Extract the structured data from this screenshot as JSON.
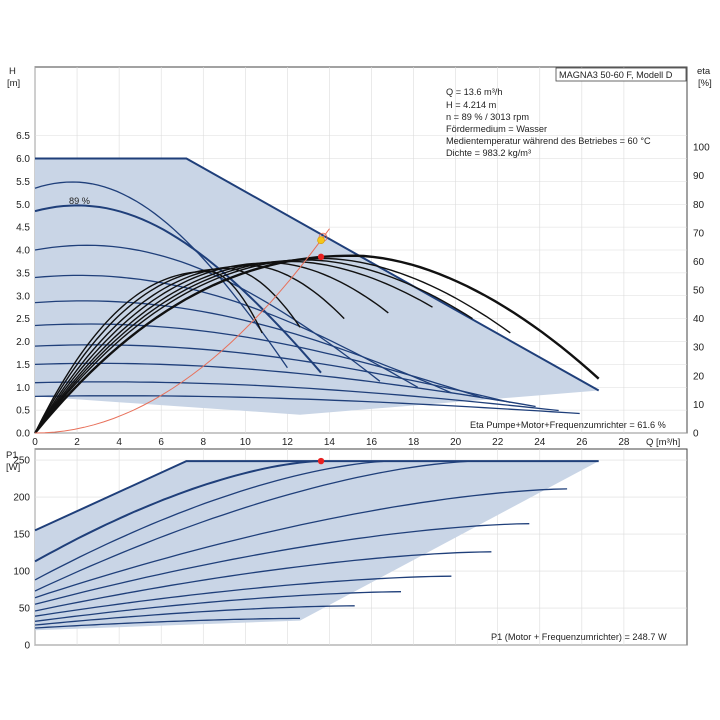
{
  "chart_data": [
    {
      "type": "line",
      "panel": "top",
      "model_label": "MAGNA3 50-60 F, Modell D",
      "ylabel": "H",
      "yunit": "[m]",
      "y2label": "eta",
      "y2unit": "[%]",
      "xlabel": "Q [m³/h]",
      "xticks": [
        "0",
        "2",
        "4",
        "6",
        "8",
        "10",
        "12",
        "14",
        "16",
        "18",
        "20",
        "22",
        "24",
        "26",
        "28"
      ],
      "yticks": [
        "0.0",
        "0.5",
        "1.0",
        "1.5",
        "2.0",
        "2.5",
        "3.0",
        "3.5",
        "4.0",
        "4.5",
        "5.0",
        "5.5",
        "6.0",
        "6.5"
      ],
      "y2ticks": [
        "0",
        "10",
        "20",
        "30",
        "40",
        "50",
        "60",
        "70",
        "80",
        "90",
        "100"
      ],
      "xlim": [
        0,
        31
      ],
      "ylim": [
        0,
        8
      ],
      "y2lim": [
        0,
        128
      ],
      "info_lines": [
        "Q = 13.6 m³/h",
        "H = 4.214 m",
        "n = 89 % / 3013 rpm",
        "Fördermedium = Wasser",
        "Medientemperatur während des Betriebes = 60 °C",
        "Dichte = 983.2 kg/m³"
      ],
      "speed_label": "89 %",
      "eta_note": "Eta Pumpe+Motor+Frequenzumrichter = 61.6 %",
      "envelope": [
        [
          0,
          6.0
        ],
        [
          7.2,
          6.0
        ],
        [
          26.8,
          0.93
        ],
        [
          12.6,
          0.4
        ],
        [
          0,
          0.8
        ]
      ],
      "h_curves": [
        {
          "h0": 5.35,
          "q_end": 12.0
        },
        {
          "h0": 4.85,
          "q_end": 13.6
        },
        {
          "h0": 4.0,
          "q_end": 16.4
        },
        {
          "h0": 3.4,
          "q_end": 18.2
        },
        {
          "h0": 2.85,
          "q_end": 19.8
        },
        {
          "h0": 2.35,
          "q_end": 21.3
        },
        {
          "h0": 1.9,
          "q_end": 22.6
        },
        {
          "h0": 1.5,
          "q_end": 23.8
        },
        {
          "h0": 1.1,
          "q_end": 24.9
        },
        {
          "h0": 0.8,
          "q_end": 25.9
        }
      ],
      "eta_curves": [
        {
          "q_end": 26.8,
          "peak_q": 15.2,
          "peak": 62.0,
          "end": 19
        },
        {
          "q_end": 22.6,
          "peak_q": 13.8,
          "peak": 61.0,
          "end": 35
        },
        {
          "q_end": 20.8,
          "peak_q": 13.0,
          "peak": 60.5,
          "end": 40
        },
        {
          "q_end": 18.9,
          "peak_q": 12.2,
          "peak": 60.0,
          "end": 44
        },
        {
          "q_end": 16.8,
          "peak_q": 11.3,
          "peak": 59.5,
          "end": 42
        },
        {
          "q_end": 14.7,
          "peak_q": 10.3,
          "peak": 58.5,
          "end": 40
        },
        {
          "q_end": 12.6,
          "peak_q": 9.2,
          "peak": 57.5,
          "end": 37
        },
        {
          "q_end": 10.8,
          "peak_q": 8.3,
          "peak": 56.5,
          "end": 35
        }
      ],
      "system_curve": {
        "k": 0.02278,
        "q_max": 14.0
      },
      "duty_point": {
        "q": 13.6,
        "h": 4.214
      },
      "eta_point": {
        "q": 13.6,
        "eta": 61.6
      }
    },
    {
      "type": "line",
      "panel": "bottom",
      "ylabel": "P1",
      "yunit": "[W]",
      "xlim": [
        0,
        31
      ],
      "ylim": [
        0,
        265
      ],
      "yticks": [
        "0",
        "50",
        "100",
        "150",
        "200",
        "250"
      ],
      "p_note": "P1 (Motor + Frequenzumrichter) = 248.7 W",
      "envelope": [
        [
          0,
          155
        ],
        [
          7.2,
          248.7
        ],
        [
          26.8,
          248.7
        ],
        [
          12.6,
          33
        ],
        [
          0,
          20
        ]
      ],
      "p_curves": [
        {
          "p0": 113,
          "q_end": 13.6,
          "p_end": 248.7
        },
        {
          "p0": 88,
          "q_end": 17.0,
          "p_end": 248.7
        },
        {
          "p0": 73,
          "q_end": 21.1,
          "p_end": 248.7
        },
        {
          "p0": 64,
          "q_end": 25.3,
          "p_end": 211
        },
        {
          "p0": 55,
          "q_end": 23.5,
          "p_end": 164
        },
        {
          "p0": 46,
          "q_end": 21.7,
          "p_end": 126
        },
        {
          "p0": 39,
          "q_end": 19.8,
          "p_end": 93
        },
        {
          "p0": 32,
          "q_end": 17.4,
          "p_end": 72
        },
        {
          "p0": 27,
          "q_end": 15.2,
          "p_end": 53
        },
        {
          "p0": 23,
          "q_end": 12.6,
          "p_end": 36
        }
      ],
      "duty_point": {
        "q": 13.6,
        "p": 248.7
      }
    }
  ],
  "colors": {
    "envelope_fill": "#c9d5e6",
    "curve_blue": "#1f3f7a",
    "curve_black": "#111111",
    "system_red": "#e8705a",
    "duty_red": "#e82020",
    "duty_yellow": "#f5c518",
    "grid": "#dcdcdc"
  }
}
